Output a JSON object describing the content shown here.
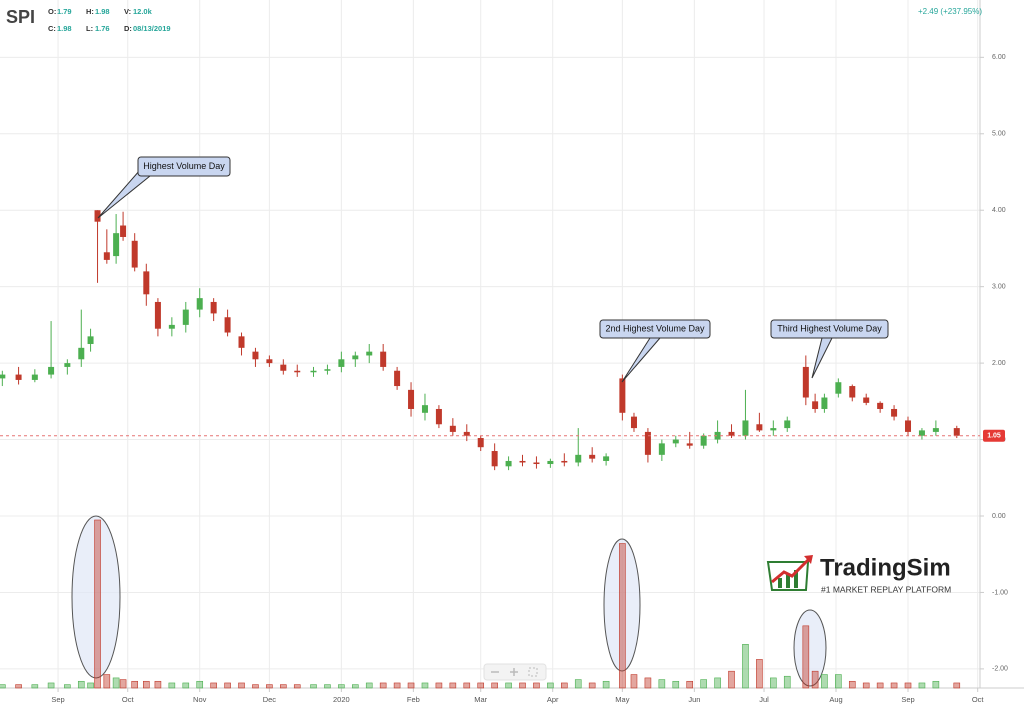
{
  "chart_data": {
    "type": "candlestick",
    "symbol": "SPI",
    "header_items": [
      {
        "label": "O:",
        "value": "1.79"
      },
      {
        "label": "H:",
        "value": "1.98"
      },
      {
        "label": "V:",
        "value": "12.0k"
      },
      {
        "label": "C:",
        "value": "1.98"
      },
      {
        "label": "L:",
        "value": "1.76"
      },
      {
        "label": "D:",
        "value": "08/13/2019"
      }
    ],
    "change": "+2.49 (+237.95%)",
    "annotations": [
      "Highest Volume Day",
      "2nd Highest Volume Day",
      "Third Highest Volume Day"
    ],
    "brand": {
      "name": "TradingSim",
      "tagline": "#1 MARKET REPLAY PLATFORM"
    },
    "up_color": "#4caf50",
    "down_color": "#c0392b",
    "last_price": {
      "value": 1.05,
      "label": "1.05"
    },
    "xlim": [
      -25,
      397
    ],
    "xticks": [
      {
        "value": 0,
        "label": "Sep"
      },
      {
        "value": 30,
        "label": "Oct"
      },
      {
        "value": 61,
        "label": "Nov"
      },
      {
        "value": 91,
        "label": "Dec"
      },
      {
        "value": 122,
        "label": "2020"
      },
      {
        "value": 153,
        "label": "Feb"
      },
      {
        "value": 182,
        "label": "Mar"
      },
      {
        "value": 213,
        "label": "Apr"
      },
      {
        "value": 243,
        "label": "May"
      },
      {
        "value": 274,
        "label": "Jun"
      },
      {
        "value": 304,
        "label": "Jul"
      },
      {
        "value": 335,
        "label": "Aug"
      },
      {
        "value": 366,
        "label": "Sep"
      },
      {
        "value": 396,
        "label": "Oct"
      }
    ],
    "ylim": [
      -2.25,
      6.75
    ],
    "yticks": [
      {
        "value": 6,
        "label": "6.00"
      },
      {
        "value": 5,
        "label": "5.00"
      },
      {
        "value": 4,
        "label": "4.00"
      },
      {
        "value": 3,
        "label": "3.00"
      },
      {
        "value": 2,
        "label": "2.00"
      },
      {
        "value": 1,
        "label": "1.00"
      },
      {
        "value": 0,
        "label": "0.00"
      },
      {
        "value": -1,
        "label": "-1.00"
      },
      {
        "value": -2,
        "label": "-2.00"
      }
    ],
    "candles": {
      "x": [
        -24,
        -17,
        -10,
        -3,
        4,
        10,
        14,
        17,
        21,
        25,
        28,
        33,
        38,
        43,
        49,
        55,
        61,
        67,
        73,
        79,
        85,
        91,
        97,
        103,
        110,
        116,
        122,
        128,
        134,
        140,
        146,
        152,
        158,
        164,
        170,
        176,
        182,
        188,
        194,
        200,
        206,
        212,
        218,
        224,
        230,
        236,
        243,
        248,
        254,
        260,
        266,
        272,
        278,
        284,
        290,
        296,
        302,
        308,
        314,
        322,
        326,
        330,
        336,
        342,
        348,
        354,
        360,
        366,
        372,
        378,
        387
      ],
      "open": [
        1.8,
        1.85,
        1.78,
        1.85,
        1.95,
        2.05,
        2.25,
        4.0,
        3.45,
        3.4,
        3.8,
        3.6,
        3.2,
        2.8,
        2.45,
        2.5,
        2.7,
        2.8,
        2.6,
        2.35,
        2.15,
        2.05,
        1.98,
        1.9,
        1.88,
        1.9,
        1.95,
        2.05,
        2.1,
        2.15,
        1.9,
        1.65,
        1.35,
        1.4,
        1.18,
        1.1,
        1.02,
        0.85,
        0.65,
        0.72,
        0.7,
        0.68,
        0.72,
        0.7,
        0.8,
        0.72,
        1.8,
        1.3,
        1.1,
        0.8,
        0.95,
        0.95,
        0.92,
        1.0,
        1.1,
        1.05,
        1.2,
        1.12,
        1.15,
        1.95,
        1.5,
        1.4,
        1.6,
        1.7,
        1.55,
        1.48,
        1.4,
        1.25,
        1.05,
        1.1,
        1.15
      ],
      "high": [
        1.9,
        1.95,
        1.92,
        2.55,
        2.05,
        2.7,
        2.45,
        4.0,
        3.75,
        3.95,
        3.98,
        3.7,
        3.3,
        2.85,
        2.6,
        2.8,
        2.98,
        2.85,
        2.7,
        2.4,
        2.2,
        2.1,
        2.05,
        1.98,
        1.95,
        1.98,
        2.15,
        2.15,
        2.25,
        2.25,
        1.95,
        1.75,
        1.6,
        1.45,
        1.28,
        1.2,
        1.05,
        0.95,
        0.78,
        0.8,
        0.78,
        0.75,
        0.82,
        1.15,
        0.9,
        0.82,
        1.85,
        1.35,
        1.15,
        1.0,
        1.05,
        1.1,
        1.08,
        1.25,
        1.2,
        1.65,
        1.35,
        1.25,
        1.3,
        2.1,
        1.6,
        1.6,
        1.8,
        1.72,
        1.6,
        1.5,
        1.45,
        1.3,
        1.15,
        1.25,
        1.18
      ],
      "low": [
        1.7,
        1.72,
        1.75,
        1.8,
        1.85,
        1.95,
        2.15,
        3.05,
        3.3,
        3.3,
        3.6,
        3.2,
        2.75,
        2.35,
        2.35,
        2.4,
        2.6,
        2.55,
        2.35,
        2.1,
        1.95,
        1.95,
        1.85,
        1.82,
        1.82,
        1.85,
        1.88,
        1.95,
        2.0,
        1.9,
        1.65,
        1.3,
        1.25,
        1.15,
        1.05,
        0.98,
        0.85,
        0.6,
        0.6,
        0.65,
        0.62,
        0.63,
        0.65,
        0.65,
        0.7,
        0.66,
        1.25,
        1.1,
        0.7,
        0.72,
        0.9,
        0.88,
        0.88,
        0.95,
        1.02,
        1.0,
        1.1,
        1.05,
        1.1,
        1.45,
        1.35,
        1.35,
        1.55,
        1.5,
        1.45,
        1.35,
        1.25,
        1.05,
        1.0,
        1.05,
        1.02
      ],
      "close": [
        1.85,
        1.78,
        1.85,
        1.95,
        2.0,
        2.2,
        2.35,
        3.85,
        3.35,
        3.7,
        3.65,
        3.25,
        2.9,
        2.45,
        2.5,
        2.7,
        2.85,
        2.65,
        2.4,
        2.2,
        2.05,
        2.0,
        1.9,
        1.88,
        1.9,
        1.92,
        2.05,
        2.1,
        2.15,
        1.95,
        1.7,
        1.4,
        1.45,
        1.2,
        1.1,
        1.05,
        0.9,
        0.65,
        0.72,
        0.7,
        0.68,
        0.72,
        0.7,
        0.8,
        0.75,
        0.78,
        1.35,
        1.15,
        0.8,
        0.95,
        1.0,
        0.92,
        1.05,
        1.1,
        1.05,
        1.25,
        1.12,
        1.15,
        1.25,
        1.55,
        1.4,
        1.55,
        1.75,
        1.55,
        1.48,
        1.4,
        1.3,
        1.1,
        1.12,
        1.15,
        1.05
      ],
      "volume": [
        2,
        2,
        2,
        3,
        2,
        4,
        3,
        100,
        8,
        6,
        5,
        4,
        4,
        4,
        3,
        3,
        4,
        3,
        3,
        3,
        2,
        2,
        2,
        2,
        2,
        2,
        2,
        2,
        3,
        3,
        3,
        3,
        3,
        3,
        3,
        3,
        3,
        3,
        3,
        3,
        3,
        3,
        3,
        5,
        3,
        4,
        86,
        8,
        6,
        5,
        4,
        4,
        5,
        6,
        10,
        26,
        17,
        6,
        7,
        37,
        10,
        8,
        8,
        4,
        3,
        3,
        3,
        3,
        3,
        4,
        3
      ]
    }
  }
}
